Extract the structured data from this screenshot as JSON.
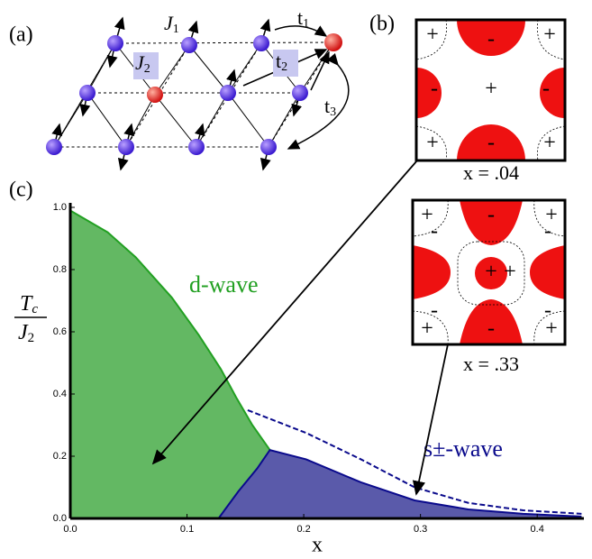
{
  "panel_a": {
    "label": "(a)",
    "j1": "J",
    "j1_sub": "1",
    "j2": "J",
    "j2_sub": "2",
    "t1": "t",
    "t1_sub": "1",
    "t2": "t",
    "t2_sub": "2",
    "t3": "t",
    "t3_sub": "3"
  },
  "panel_b": {
    "label": "(b)",
    "top": {
      "caption": "x = .04",
      "signs": [
        "+",
        "-",
        "+",
        "-",
        "+",
        "-",
        "+",
        "-",
        "+"
      ]
    },
    "bottom": {
      "caption": "x = .33",
      "signs": [
        "+",
        "-",
        "+",
        "-",
        "+",
        "-",
        "-",
        "+",
        "-",
        "+",
        "-",
        "+"
      ]
    }
  },
  "chart_data": {
    "type": "line",
    "panel_label": "(c)",
    "ylabel_num": "T",
    "ylabel_num_sub": "c",
    "ylabel_den": "J",
    "ylabel_den_sub": "2",
    "xlabel": "x",
    "xlim": [
      0,
      0.44
    ],
    "ylim": [
      0,
      1.0
    ],
    "xticks": [
      {
        "value": 0,
        "label": "0.0"
      },
      0.1,
      0.2,
      0.3,
      0.4
    ],
    "yticks": [
      {
        "value": 0,
        "label": "0.0"
      },
      0.2,
      0.4,
      0.6,
      0.8,
      {
        "value": 1.0,
        "label": "1.0"
      }
    ],
    "series": [
      {
        "name": "d-wave",
        "color": "#22a022",
        "fill": "#63b863",
        "style": "solid",
        "x": [
          0,
          0.032,
          0.056,
          0.087,
          0.11,
          0.129,
          0.142,
          0.156,
          0.171
        ],
        "values": [
          0.99,
          0.92,
          0.84,
          0.71,
          0.59,
          0.48,
          0.39,
          0.3,
          0.22
        ]
      },
      {
        "name": "s±-wave",
        "color": "#0a0a8c",
        "fill": "#5a5aaa",
        "style": "solid",
        "x": [
          0.127,
          0.144,
          0.16,
          0.171,
          0.202,
          0.249,
          0.295,
          0.341,
          0.388,
          0.438
        ],
        "values": [
          0,
          0.087,
          0.16,
          0.22,
          0.19,
          0.116,
          0.058,
          0.029,
          0.015,
          0.006
        ]
      },
      {
        "color": "#0a0a8c",
        "style": "dashed",
        "x": [
          0.152,
          0.202,
          0.249,
          0.295,
          0.341,
          0.388,
          0.438
        ],
        "values": [
          0.348,
          0.275,
          0.19,
          0.1,
          0.05,
          0.026,
          0.015
        ]
      }
    ]
  }
}
